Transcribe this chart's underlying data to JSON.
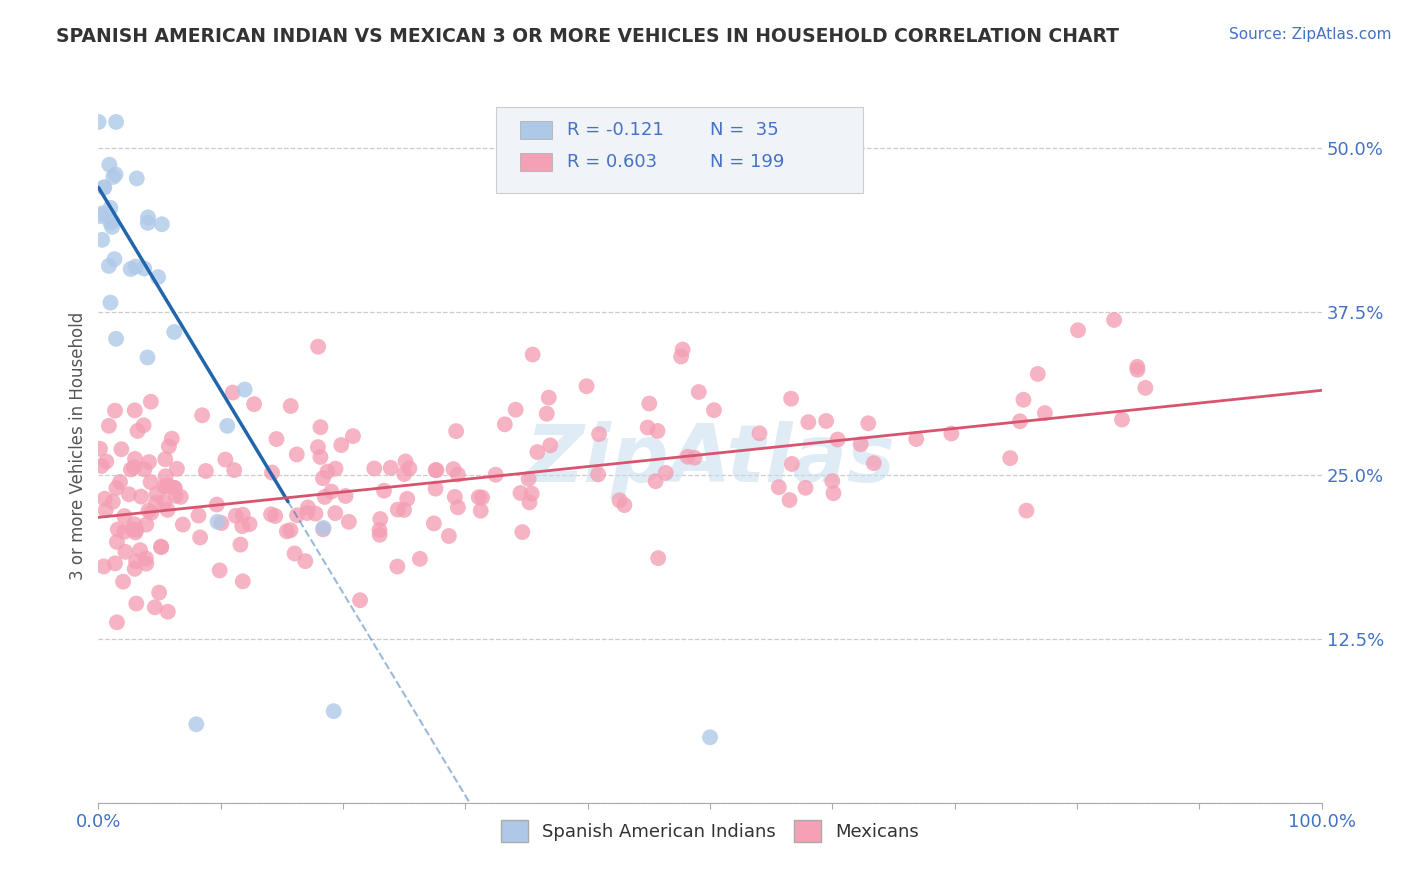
{
  "title": "SPANISH AMERICAN INDIAN VS MEXICAN 3 OR MORE VEHICLES IN HOUSEHOLD CORRELATION CHART",
  "source": "Source: ZipAtlas.com",
  "ylabel": "3 or more Vehicles in Household",
  "xlim": [
    0.0,
    1.0
  ],
  "ylim": [
    0.0,
    0.545
  ],
  "blue_R": -0.121,
  "blue_N": 35,
  "pink_R": 0.603,
  "pink_N": 199,
  "blue_color": "#aec9e8",
  "pink_color": "#f4a0b5",
  "blue_line_color": "#2166ac",
  "pink_line_color": "#d6546e",
  "background_color": "#ffffff",
  "grid_color": "#cccccc",
  "watermark": "ZipAtlas",
  "watermark_color": "#c5ddf0",
  "legend_label_blue": "Spanish American Indians",
  "legend_label_pink": "Mexicans",
  "title_color": "#333333",
  "axis_label_color": "#555555",
  "tick_label_color": "#4472C4",
  "source_color": "#4472C4",
  "legend_box_color": "#e8f0f8",
  "ytick_positions": [
    0.0,
    0.125,
    0.25,
    0.375,
    0.5
  ],
  "ytick_labels": [
    "",
    "12.5%",
    "25.0%",
    "37.5%",
    "50.0%"
  ],
  "xtick_positions": [
    0.0,
    0.1,
    0.2,
    0.3,
    0.4,
    0.5,
    0.6,
    0.7,
    0.8,
    0.9,
    1.0
  ],
  "xtick_labels": [
    "0.0%",
    "",
    "",
    "",
    "",
    "",
    "",
    "",
    "",
    "",
    "100.0%"
  ]
}
